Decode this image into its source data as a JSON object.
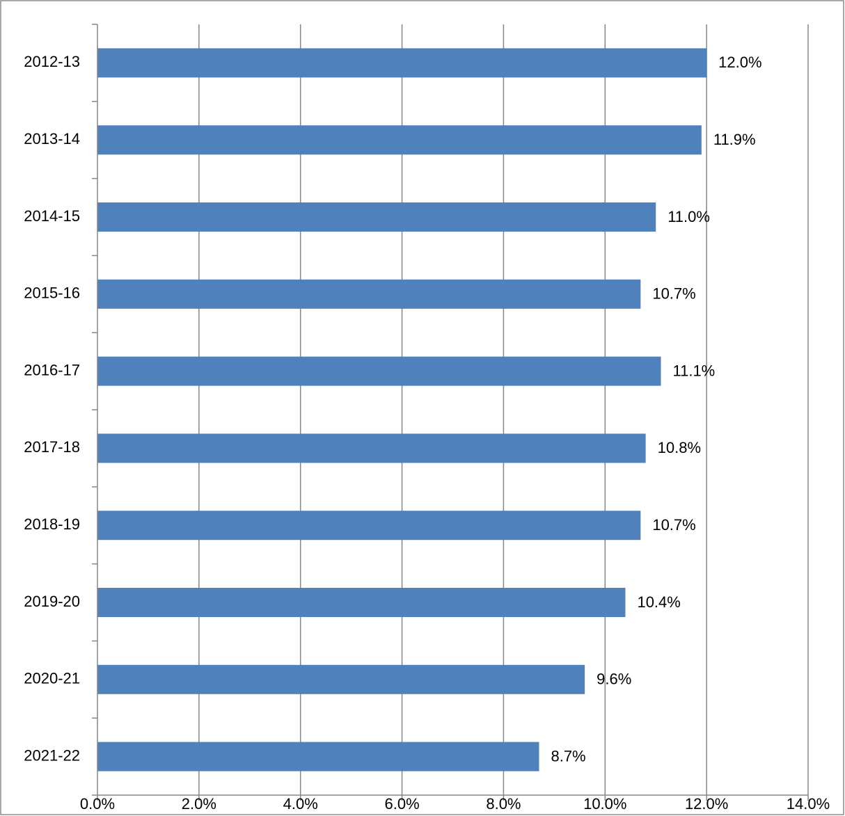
{
  "chart_data": {
    "type": "bar",
    "orientation": "horizontal",
    "categories": [
      "2012-13",
      "2013-14",
      "2014-15",
      "2015-16",
      "2016-17",
      "2017-18",
      "2018-19",
      "2019-20",
      "2020-21",
      "2021-22"
    ],
    "values": [
      12.0,
      11.9,
      11.0,
      10.7,
      11.1,
      10.8,
      10.7,
      10.4,
      9.6,
      8.7
    ],
    "data_labels": [
      "12.0%",
      "11.9%",
      "11.0%",
      "10.7%",
      "11.1%",
      "10.8%",
      "10.7%",
      "10.4%",
      "9.6%",
      "8.7%"
    ],
    "x_ticks": [
      0,
      2,
      4,
      6,
      8,
      10,
      12,
      14
    ],
    "x_tick_labels": [
      "0.0%",
      "2.0%",
      "4.0%",
      "6.0%",
      "8.0%",
      "10.0%",
      "12.0%",
      "14.0%"
    ],
    "xlim": [
      0,
      14
    ],
    "grid": true,
    "legend": false,
    "bar_color": "#4f81bd"
  }
}
